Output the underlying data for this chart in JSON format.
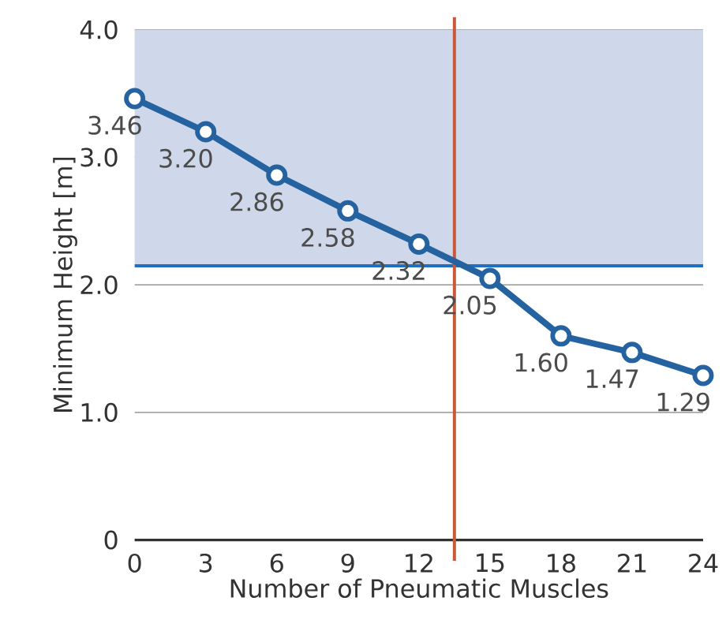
{
  "chart_data": {
    "type": "line",
    "xlabel": "Number of Pneumatic Muscles",
    "ylabel": "Minimum Height [m]",
    "x": [
      0,
      3,
      6,
      9,
      12,
      15,
      18,
      21,
      24
    ],
    "values": [
      3.46,
      3.2,
      2.86,
      2.58,
      2.32,
      2.05,
      1.6,
      1.47,
      1.29
    ],
    "value_labels": [
      "3.46",
      "3.20",
      "2.86",
      "2.58",
      "2.32",
      "2.05",
      "1.60",
      "1.47",
      "1.29"
    ],
    "color": "#2563a0",
    "marker": "circle",
    "xlim": [
      0,
      24
    ],
    "xticks": [
      0,
      3,
      6,
      9,
      12,
      15,
      18,
      21,
      24
    ],
    "ylim": [
      0,
      4
    ],
    "yticks": [
      0,
      {
        "value": 1,
        "label": "1.0"
      },
      {
        "value": 2,
        "label": "2.0"
      },
      {
        "value": 3,
        "label": "3.0"
      },
      {
        "value": 4,
        "label": "4.0"
      }
    ],
    "grid": "y",
    "ref_lines": [
      {
        "axis": "y",
        "value": 2.15,
        "color": "#1f6fc2"
      },
      {
        "axis": "x",
        "value": 13.5,
        "color": "#c9583c"
      }
    ],
    "bands": [
      {
        "axis": "y",
        "from": 2.15,
        "to": 4.0,
        "color": "#cfd8ea"
      }
    ]
  }
}
